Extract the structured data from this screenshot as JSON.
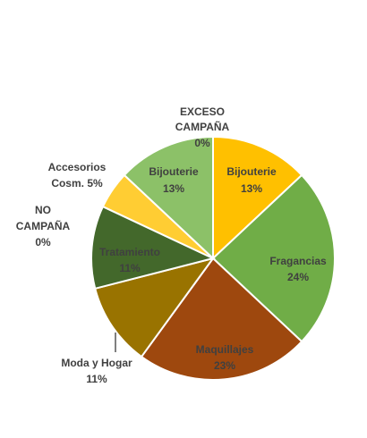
{
  "chart_data": {
    "type": "pie",
    "title": "",
    "slices": [
      {
        "label": "Bijouterie",
        "value_label": "13%",
        "value": 13,
        "color": "#FFC000"
      },
      {
        "label": "Fragancias",
        "value_label": "24%",
        "value": 24,
        "color": "#70AD47"
      },
      {
        "label": "Maquillajes",
        "value_label": "23%",
        "value": 23,
        "color": "#9E480E"
      },
      {
        "label": "Moda y Hogar",
        "value_label": "11%",
        "value": 11,
        "color": "#997300"
      },
      {
        "label": "Tratamiento",
        "value_label": "11%",
        "value": 11,
        "color": "#43682B"
      },
      {
        "label": "NO CAMPAÑA",
        "value_label": "0%",
        "value": 0,
        "color": "#264478"
      },
      {
        "label": "Accesorios Cosm.",
        "value_label": "5%",
        "value": 5,
        "color": "#FFCD33"
      },
      {
        "label": "Bijouterie",
        "value_label": "13%",
        "value": 13,
        "color": "#8CC168"
      },
      {
        "label": "EXCESO CAMPAÑA",
        "value_label": "0%",
        "value": 0,
        "color": "#BF9000"
      }
    ]
  },
  "labels": {
    "exceso_line1": "EXCESO",
    "exceso_line2": "CAMPAÑA",
    "exceso_pct": "0%",
    "bijouterie_right": "Bijouterie",
    "bijouterie_right_pct": "13%",
    "bijouterie_left": "Bijouterie",
    "bijouterie_left_pct": "13%",
    "fragancias": "Fragancias",
    "fragancias_pct": "24%",
    "maquillajes": "Maquillajes",
    "maquillajes_pct": "23%",
    "moda_hogar": "Moda y Hogar",
    "moda_hogar_pct": "11%",
    "tratamiento": "Tratamiento",
    "tratamiento_pct": "11%",
    "no_campana_line1": "NO",
    "no_campana_line2": "CAMPAÑA",
    "no_campana_pct": "0%",
    "accesorios_line1": "Accesorios",
    "accesorios_line2": "Cosm. 5%"
  }
}
